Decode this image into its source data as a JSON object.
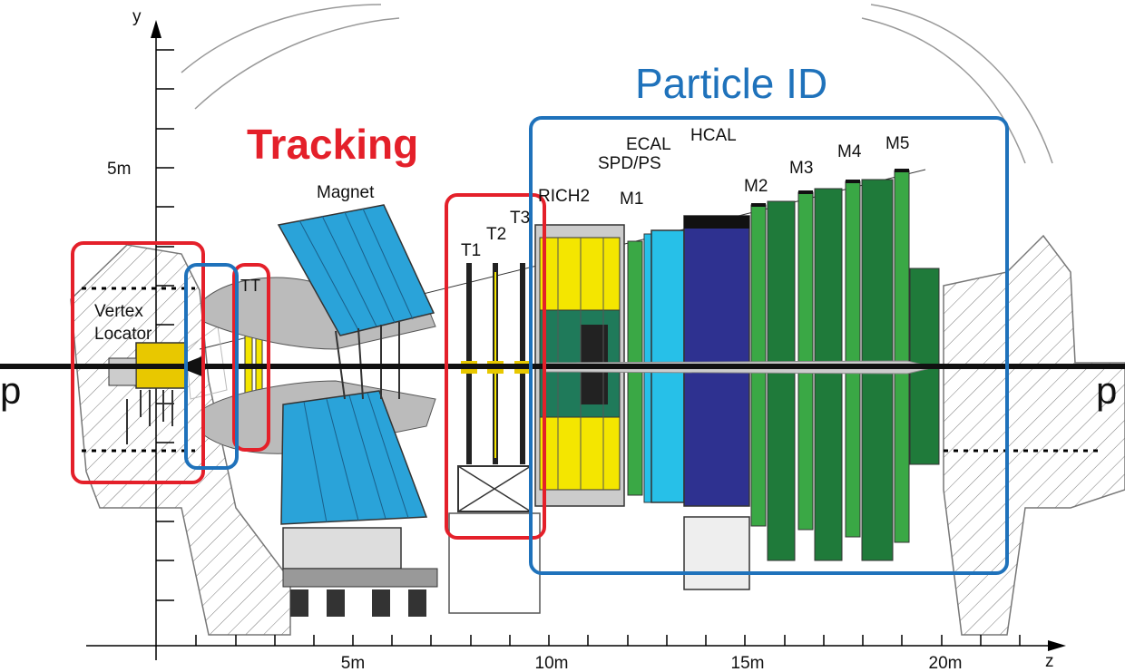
{
  "axes": {
    "y_label": "y",
    "z_label": "z",
    "y_tick_5m": "5m",
    "z_ticks": [
      "5m",
      "10m",
      "15m",
      "20m"
    ]
  },
  "headings": {
    "tracking": "Tracking",
    "particle_id": "Particle ID"
  },
  "beam": {
    "left_label": "p",
    "right_label": "p"
  },
  "components": {
    "magnet": "Magnet",
    "vertex_locator_line1": "Vertex",
    "vertex_locator_line2": "Locator",
    "tt": "TT",
    "t1": "T1",
    "t2": "T2",
    "t3": "T3",
    "rich2": "RICH2",
    "spd_ps": "SPD/PS",
    "ecal": "ECAL",
    "hcal": "HCAL",
    "m1": "M1",
    "m2": "M2",
    "m3": "M3",
    "m4": "M4",
    "m5": "M5"
  },
  "colors": {
    "tracking_box": "#e4202a",
    "particle_id_box": "#1f72bb",
    "magnet_blue": "#2aa3d9",
    "rich_yellow": "#f4e600",
    "ecal_cyan": "#27c0e8",
    "hcal_navy": "#2e3190",
    "muon_green": "#3aa845",
    "muon_dark_green": "#1f7a3a"
  }
}
